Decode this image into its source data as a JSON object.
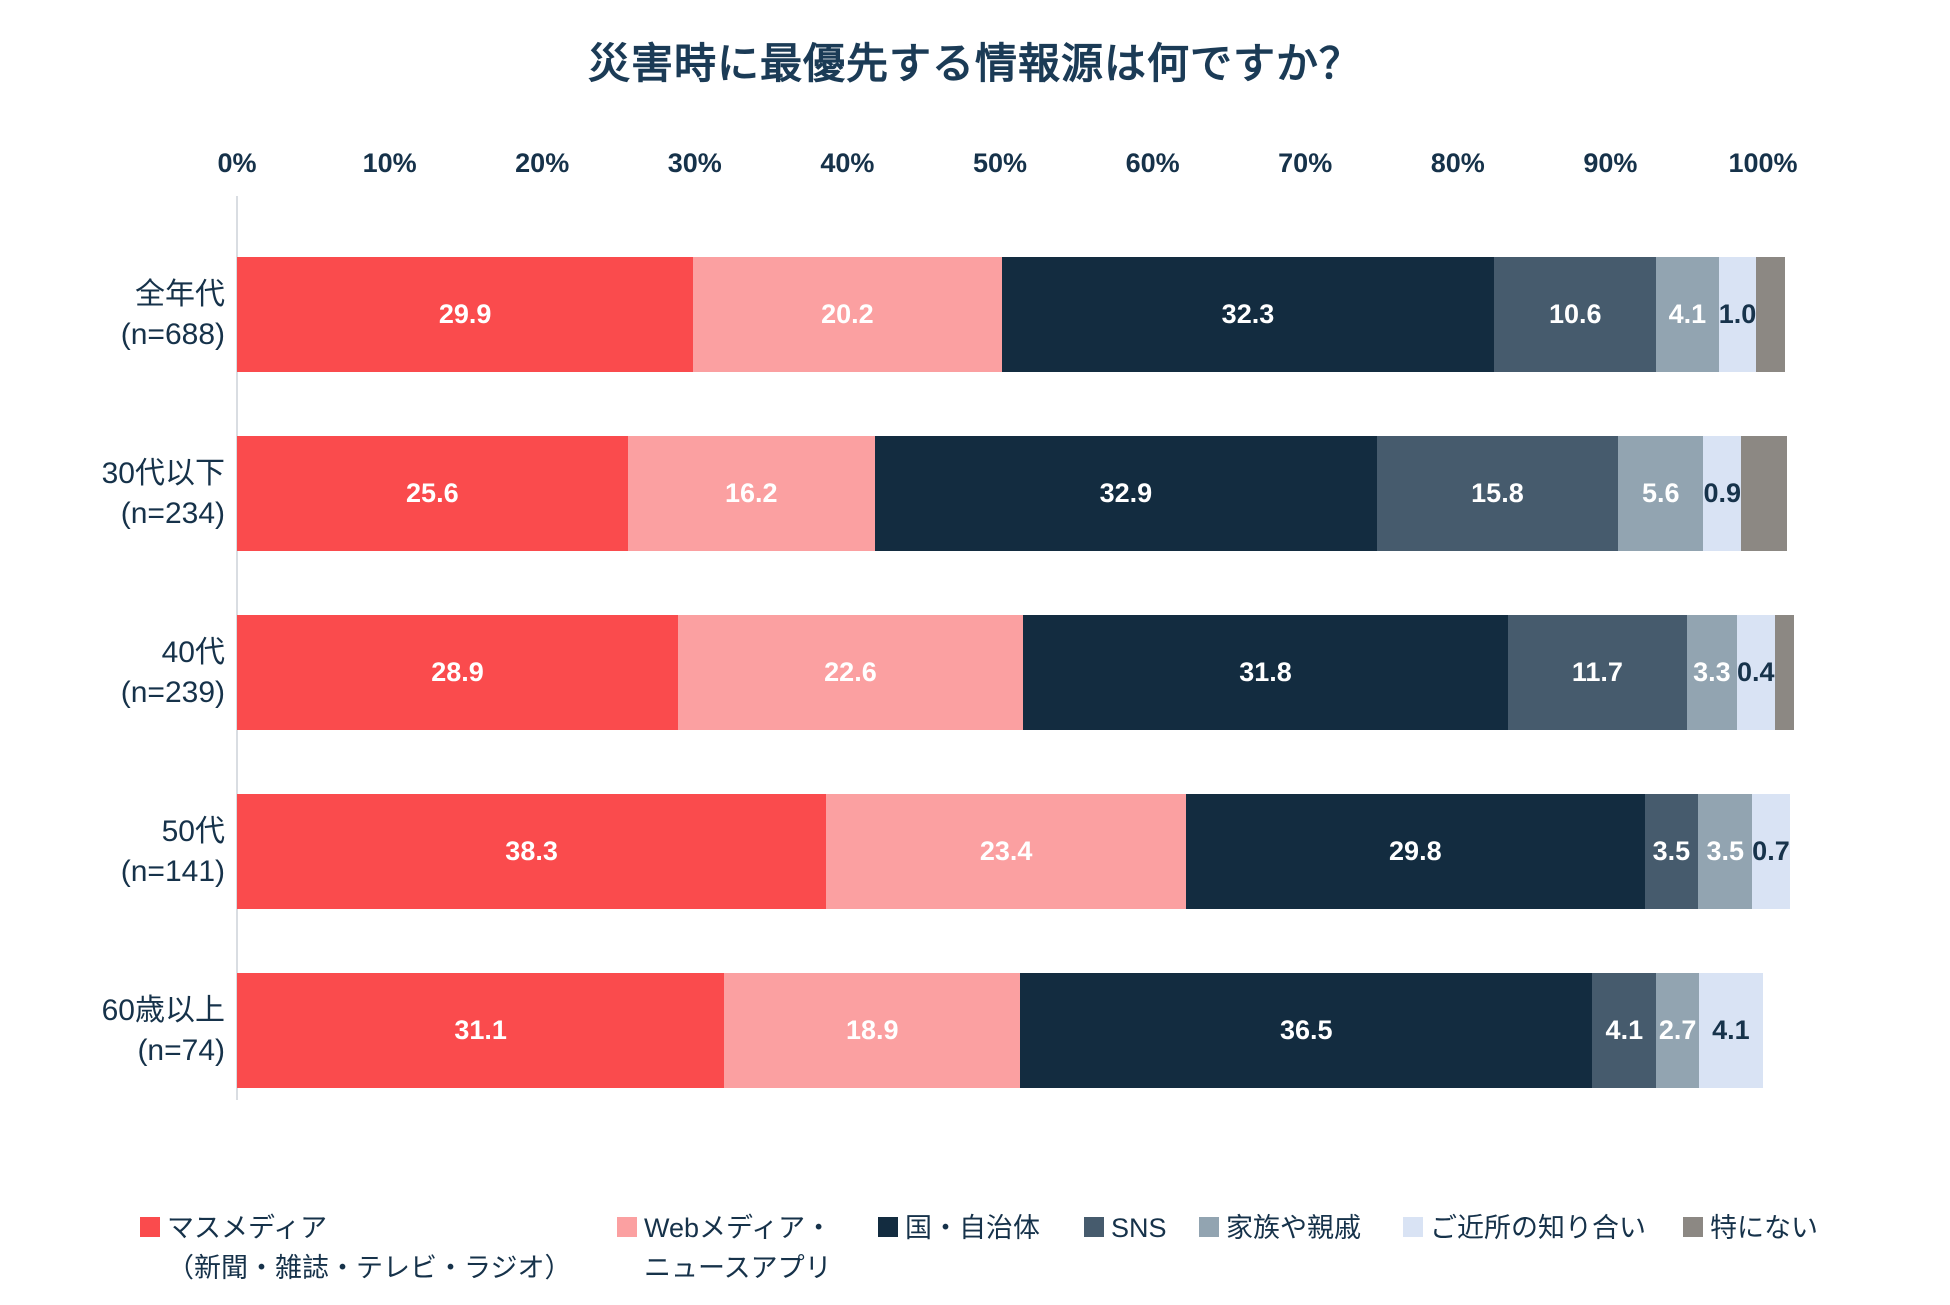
{
  "title": "災害時に最優先する情報源は何ですか？",
  "axis": {
    "ticks": [
      "0%",
      "10%",
      "20%",
      "30%",
      "40%",
      "50%",
      "60%",
      "70%",
      "80%",
      "90%",
      "100%"
    ]
  },
  "chart_data": {
    "type": "bar",
    "orientation": "horizontal",
    "stacked": true,
    "title": "災害時に最優先する情報源は何ですか？",
    "xlabel": "",
    "ylabel": "",
    "xlim": [
      0,
      100
    ],
    "grid": false,
    "legend_position": "bottom",
    "categories": [
      "全年代",
      "30代以下",
      "40代",
      "50代",
      "60歳以上"
    ],
    "category_counts": [
      "(n=688)",
      "(n=234)",
      "(n=239)",
      "(n=141)",
      "(n=74)"
    ],
    "series": [
      {
        "name": "マスメディア（新聞・雑誌・テレビ・ラジオ）",
        "color": "#FA4B4D",
        "label_style": "light",
        "show_labels": true,
        "values": [
          29.9,
          25.6,
          28.9,
          38.3,
          31.1
        ]
      },
      {
        "name": "Webメディア・ニュースアプリ",
        "color": "#FBA0A1",
        "label_style": "light",
        "show_labels": true,
        "values": [
          20.2,
          16.2,
          22.6,
          23.4,
          18.9
        ]
      },
      {
        "name": "国・自治体",
        "color": "#132C40",
        "label_style": "light",
        "show_labels": true,
        "values": [
          32.3,
          32.9,
          31.8,
          29.8,
          36.5
        ]
      },
      {
        "name": "SNS",
        "color": "#465B6D",
        "label_style": "light",
        "show_labels": true,
        "values": [
          10.6,
          15.8,
          11.7,
          3.5,
          4.1
        ]
      },
      {
        "name": "家族や親戚",
        "color": "#92A4B1",
        "label_style": "light",
        "show_labels": true,
        "values": [
          4.1,
          5.6,
          3.3,
          3.5,
          2.7
        ]
      },
      {
        "name": "ご近所の知り合い",
        "color": "#D9E3F4",
        "label_style": "dark",
        "show_labels": true,
        "values": [
          1.0,
          0.9,
          0.4,
          0.7,
          4.1
        ]
      },
      {
        "name": "特にない",
        "color": "#8C8883",
        "label_style": "light",
        "show_labels": false,
        "values": [
          1.9,
          3.0,
          1.3,
          0.0,
          0.0
        ]
      }
    ]
  },
  "legend": {
    "items": [
      {
        "name": "マスメディア（新聞・雑誌・テレビ・ラジオ）",
        "lines": [
          "マスメディア",
          "（新聞・雑誌・テレビ・ラジオ）"
        ],
        "color": "#FA4B4D"
      },
      {
        "name": "Webメディア・ニュースアプリ",
        "lines": [
          "Webメディア・",
          "ニュースアプリ"
        ],
        "color": "#FBA0A1"
      },
      {
        "name": "国・自治体",
        "lines": [
          "国・自治体"
        ],
        "color": "#132C40"
      },
      {
        "name": "SNS",
        "lines": [
          "SNS"
        ],
        "color": "#465B6D"
      },
      {
        "name": "家族や親戚",
        "lines": [
          "家族や親戚"
        ],
        "color": "#92A4B1"
      },
      {
        "name": "ご近所の知り合い",
        "lines": [
          "ご近所の知り合い"
        ],
        "color": "#D9E3F4"
      },
      {
        "name": "特にない",
        "lines": [
          "特にない"
        ],
        "color": "#8C8883"
      }
    ]
  }
}
